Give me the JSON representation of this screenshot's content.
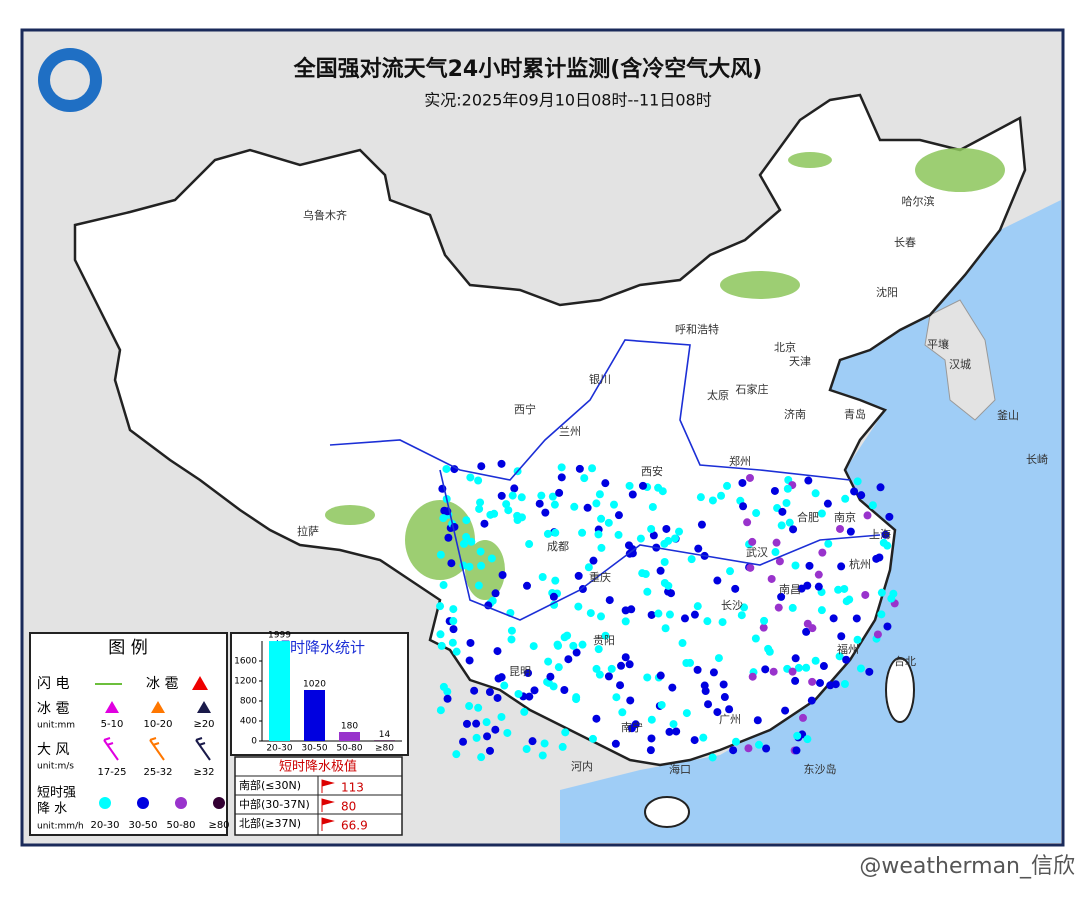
{
  "header": {
    "title": "全国强对流天气24小时累计监测(含冷空气大风)",
    "subtitle": "实况:2025年09月10日08时--11日08时"
  },
  "cities": [
    "乌鲁木齐",
    "哈尔滨",
    "长春",
    "沈阳",
    "呼和浩特",
    "北京",
    "天津",
    "银川",
    "太原",
    "石家庄",
    "济南",
    "青岛",
    "西宁",
    "兰州",
    "郑州",
    "西安",
    "拉萨",
    "成都",
    "合肥",
    "南京",
    "上海",
    "武汉",
    "重庆",
    "杭州",
    "长沙",
    "南昌",
    "贵阳",
    "福州",
    "昆明",
    "南宁",
    "广州",
    "台北",
    "海口",
    "平壤",
    "汉城",
    "釜山",
    "长崎",
    "河内",
    "东沙岛"
  ],
  "legend": {
    "title": "图 例",
    "lightning": "闪 电",
    "hail_head": "冰 雹",
    "hail": "冰 雹",
    "hail_unit": "unit:mm",
    "hail_ranges": [
      "5-10",
      "10-20",
      "≥20"
    ],
    "wind": "大 风",
    "wind_unit": "unit:m/s",
    "wind_ranges": [
      "17-25",
      "25-32",
      "≥32"
    ],
    "rain_1": "短时强",
    "rain_2": "降 水",
    "rain_unit": "unit:mm/h",
    "rain_ranges": [
      "20-30",
      "30-50",
      "50-80",
      "≥80"
    ]
  },
  "stats_chart": {
    "type": "bar",
    "title": "短时降水统计",
    "categories": [
      "20-30",
      "30-50",
      "50-80",
      "≥80"
    ],
    "values": [
      1999,
      1020,
      180,
      14
    ],
    "colors": [
      "#00ffff",
      "#0000e0",
      "#9933cc",
      "#330033"
    ],
    "ylim": [
      0,
      2000
    ],
    "yticks": [
      0,
      400,
      800,
      1200,
      1600
    ]
  },
  "extremes": {
    "title": "短时降水极值",
    "rows": [
      [
        "南部(≤30N)",
        "113"
      ],
      [
        "中部(30-37N)",
        "80"
      ],
      [
        "北部(≥37N)",
        "66.9"
      ]
    ]
  },
  "watermark": "@weatherman_信欣"
}
